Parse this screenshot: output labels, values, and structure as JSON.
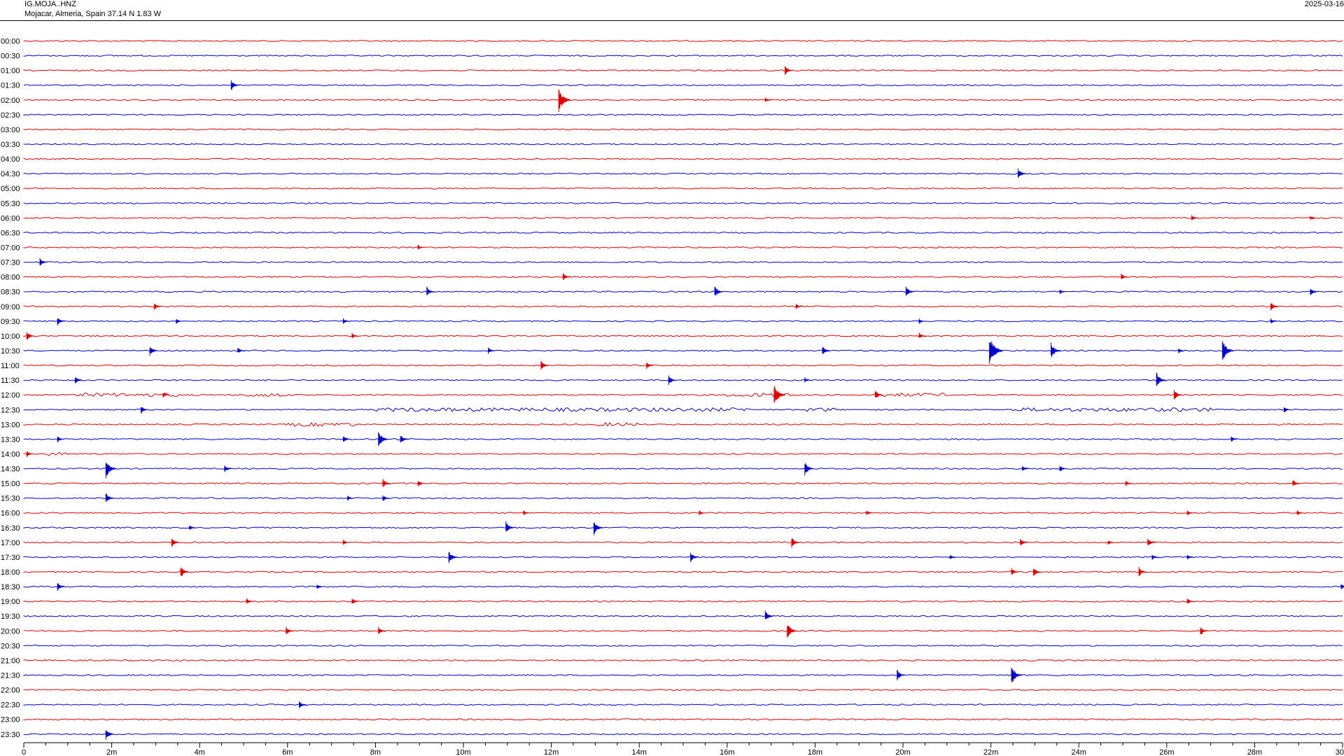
{
  "header": {
    "station_code": "IG.MOJA..HNZ",
    "location": "Mojacar, Almeria, Spain  37.14 N 1.83 W",
    "date": "2025-03-16"
  },
  "chart_data": {
    "type": "helicorder",
    "title": "",
    "xlabel": "",
    "ylabel": "",
    "x_range": [
      0,
      30
    ],
    "x_unit": "minutes",
    "x_tick_labels": [
      "0",
      "2m",
      "4m",
      "6m",
      "8m",
      "10m",
      "12m",
      "14m",
      "16m",
      "18m",
      "20m",
      "22m",
      "24m",
      "26m",
      "28m",
      "30"
    ],
    "x_tick_values": [
      0,
      2,
      4,
      6,
      8,
      10,
      12,
      14,
      16,
      18,
      20,
      22,
      24,
      26,
      28,
      30
    ],
    "row_labels": [
      "00:00",
      "00:30",
      "01:00",
      "01:30",
      "02:00",
      "02:30",
      "03:00",
      "03:30",
      "04:00",
      "04:30",
      "05:00",
      "05:30",
      "06:00",
      "06:30",
      "07:00",
      "07:30",
      "08:00",
      "08:30",
      "09:00",
      "09:30",
      "10:00",
      "10:30",
      "11:00",
      "11:30",
      "12:00",
      "12:30",
      "13:00",
      "13:30",
      "14:00",
      "14:30",
      "15:00",
      "15:30",
      "16:00",
      "16:30",
      "17:00",
      "17:30",
      "18:00",
      "18:30",
      "19:00",
      "19:30",
      "20:00",
      "20:30",
      "21:00",
      "21:30",
      "22:00",
      "22:30",
      "23:00",
      "23:30"
    ],
    "trace_colors": [
      "#e00000",
      "#0000cc"
    ],
    "noise_bursts": [
      {
        "row": 24,
        "from": 1.2,
        "to": 3.5
      },
      {
        "row": 24,
        "from": 5.0,
        "to": 6.0
      },
      {
        "row": 24,
        "from": 16.0,
        "to": 17.5
      },
      {
        "row": 24,
        "from": 19.3,
        "to": 21.0
      },
      {
        "row": 25,
        "from": 8.0,
        "to": 13.5
      },
      {
        "row": 25,
        "from": 13.2,
        "to": 16.5
      },
      {
        "row": 25,
        "from": 17.8,
        "to": 18.5
      },
      {
        "row": 25,
        "from": 22.5,
        "to": 27.0
      },
      {
        "row": 26,
        "from": 6.0,
        "to": 7.5
      },
      {
        "row": 26,
        "from": 13.0,
        "to": 14.0
      },
      {
        "row": 28,
        "from": 0.5,
        "to": 1.0
      }
    ],
    "events": [
      {
        "row": 2,
        "t": 17.35,
        "amp": 7
      },
      {
        "row": 3,
        "t": 4.75,
        "amp": 8
      },
      {
        "row": 4,
        "t": 12.2,
        "amp": 18
      },
      {
        "row": 4,
        "t": 16.9,
        "amp": 4
      },
      {
        "row": 9,
        "t": 22.65,
        "amp": 8
      },
      {
        "row": 12,
        "t": 26.6,
        "amp": 5
      },
      {
        "row": 12,
        "t": 29.3,
        "amp": 4
      },
      {
        "row": 14,
        "t": 9.0,
        "amp": 4
      },
      {
        "row": 15,
        "t": 0.4,
        "amp": 6
      },
      {
        "row": 16,
        "t": 12.3,
        "amp": 6
      },
      {
        "row": 16,
        "t": 25.0,
        "amp": 5
      },
      {
        "row": 17,
        "t": 9.2,
        "amp": 7
      },
      {
        "row": 17,
        "t": 15.75,
        "amp": 9
      },
      {
        "row": 17,
        "t": 20.1,
        "amp": 8
      },
      {
        "row": 17,
        "t": 23.6,
        "amp": 4
      },
      {
        "row": 17,
        "t": 29.3,
        "amp": 6
      },
      {
        "row": 18,
        "t": 3.0,
        "amp": 6
      },
      {
        "row": 18,
        "t": 17.6,
        "amp": 4
      },
      {
        "row": 18,
        "t": 28.4,
        "amp": 7
      },
      {
        "row": 19,
        "t": 0.8,
        "amp": 6
      },
      {
        "row": 19,
        "t": 3.5,
        "amp": 4
      },
      {
        "row": 19,
        "t": 7.3,
        "amp": 4
      },
      {
        "row": 19,
        "t": 20.4,
        "amp": 4
      },
      {
        "row": 19,
        "t": 28.4,
        "amp": 4
      },
      {
        "row": 20,
        "t": 0.1,
        "amp": 7
      },
      {
        "row": 20,
        "t": 7.5,
        "amp": 4
      },
      {
        "row": 20,
        "t": 20.4,
        "amp": 5
      },
      {
        "row": 21,
        "t": 2.9,
        "amp": 8
      },
      {
        "row": 21,
        "t": 4.9,
        "amp": 5
      },
      {
        "row": 21,
        "t": 10.6,
        "amp": 5
      },
      {
        "row": 21,
        "t": 18.2,
        "amp": 7
      },
      {
        "row": 21,
        "t": 22.0,
        "amp": 22
      },
      {
        "row": 21,
        "t": 23.4,
        "amp": 12
      },
      {
        "row": 21,
        "t": 26.3,
        "amp": 4
      },
      {
        "row": 21,
        "t": 27.3,
        "amp": 16
      },
      {
        "row": 22,
        "t": 11.8,
        "amp": 7
      },
      {
        "row": 22,
        "t": 14.2,
        "amp": 5
      },
      {
        "row": 23,
        "t": 1.2,
        "amp": 6
      },
      {
        "row": 23,
        "t": 14.7,
        "amp": 7
      },
      {
        "row": 23,
        "t": 17.8,
        "amp": 4
      },
      {
        "row": 23,
        "t": 25.8,
        "amp": 11
      },
      {
        "row": 24,
        "t": 3.2,
        "amp": 4
      },
      {
        "row": 24,
        "t": 17.1,
        "amp": 16
      },
      {
        "row": 24,
        "t": 19.4,
        "amp": 7
      },
      {
        "row": 24,
        "t": 26.2,
        "amp": 8
      },
      {
        "row": 25,
        "t": 2.7,
        "amp": 6
      },
      {
        "row": 25,
        "t": 28.7,
        "amp": 5
      },
      {
        "row": 27,
        "t": 0.8,
        "amp": 5
      },
      {
        "row": 27,
        "t": 7.3,
        "amp": 6
      },
      {
        "row": 27,
        "t": 8.1,
        "amp": 12
      },
      {
        "row": 27,
        "t": 8.6,
        "amp": 7
      },
      {
        "row": 27,
        "t": 27.5,
        "amp": 4
      },
      {
        "row": 28,
        "t": 0.1,
        "amp": 5
      },
      {
        "row": 29,
        "t": 1.9,
        "amp": 14
      },
      {
        "row": 29,
        "t": 4.6,
        "amp": 6
      },
      {
        "row": 29,
        "t": 17.8,
        "amp": 10
      },
      {
        "row": 29,
        "t": 22.75,
        "amp": 4
      },
      {
        "row": 29,
        "t": 23.6,
        "amp": 5
      },
      {
        "row": 30,
        "t": 8.2,
        "amp": 7
      },
      {
        "row": 30,
        "t": 9.0,
        "amp": 5
      },
      {
        "row": 30,
        "t": 25.1,
        "amp": 4
      },
      {
        "row": 30,
        "t": 28.9,
        "amp": 6
      },
      {
        "row": 31,
        "t": 1.9,
        "amp": 8
      },
      {
        "row": 31,
        "t": 7.4,
        "amp": 4
      },
      {
        "row": 31,
        "t": 8.2,
        "amp": 5
      },
      {
        "row": 32,
        "t": 11.4,
        "amp": 4
      },
      {
        "row": 32,
        "t": 15.4,
        "amp": 4
      },
      {
        "row": 32,
        "t": 19.2,
        "amp": 4
      },
      {
        "row": 32,
        "t": 26.5,
        "amp": 4
      },
      {
        "row": 32,
        "t": 29.0,
        "amp": 4
      },
      {
        "row": 33,
        "t": 3.8,
        "amp": 4
      },
      {
        "row": 33,
        "t": 11.0,
        "amp": 9
      },
      {
        "row": 33,
        "t": 13.0,
        "amp": 11
      },
      {
        "row": 34,
        "t": 3.4,
        "amp": 7
      },
      {
        "row": 34,
        "t": 7.3,
        "amp": 4
      },
      {
        "row": 34,
        "t": 17.5,
        "amp": 8
      },
      {
        "row": 34,
        "t": 22.7,
        "amp": 6
      },
      {
        "row": 34,
        "t": 24.7,
        "amp": 4
      },
      {
        "row": 34,
        "t": 25.6,
        "amp": 7
      },
      {
        "row": 35,
        "t": 9.7,
        "amp": 9
      },
      {
        "row": 35,
        "t": 15.2,
        "amp": 7
      },
      {
        "row": 35,
        "t": 21.1,
        "amp": 4
      },
      {
        "row": 35,
        "t": 25.7,
        "amp": 4
      },
      {
        "row": 35,
        "t": 26.5,
        "amp": 4
      },
      {
        "row": 36,
        "t": 3.6,
        "amp": 9
      },
      {
        "row": 36,
        "t": 22.5,
        "amp": 6
      },
      {
        "row": 36,
        "t": 23.0,
        "amp": 7
      },
      {
        "row": 36,
        "t": 25.4,
        "amp": 7
      },
      {
        "row": 37,
        "t": 0.8,
        "amp": 6
      },
      {
        "row": 37,
        "t": 6.7,
        "amp": 4
      },
      {
        "row": 37,
        "t": 30.0,
        "amp": 5
      },
      {
        "row": 38,
        "t": 5.1,
        "amp": 5
      },
      {
        "row": 38,
        "t": 7.5,
        "amp": 5
      },
      {
        "row": 38,
        "t": 26.5,
        "amp": 5
      },
      {
        "row": 39,
        "t": 16.9,
        "amp": 8
      },
      {
        "row": 40,
        "t": 6.0,
        "amp": 6
      },
      {
        "row": 40,
        "t": 8.1,
        "amp": 6
      },
      {
        "row": 40,
        "t": 17.4,
        "amp": 12
      },
      {
        "row": 40,
        "t": 26.8,
        "amp": 7
      },
      {
        "row": 43,
        "t": 19.9,
        "amp": 8
      },
      {
        "row": 43,
        "t": 22.5,
        "amp": 14
      },
      {
        "row": 45,
        "t": 6.3,
        "amp": 6
      },
      {
        "row": 47,
        "t": 1.9,
        "amp": 8
      }
    ]
  }
}
